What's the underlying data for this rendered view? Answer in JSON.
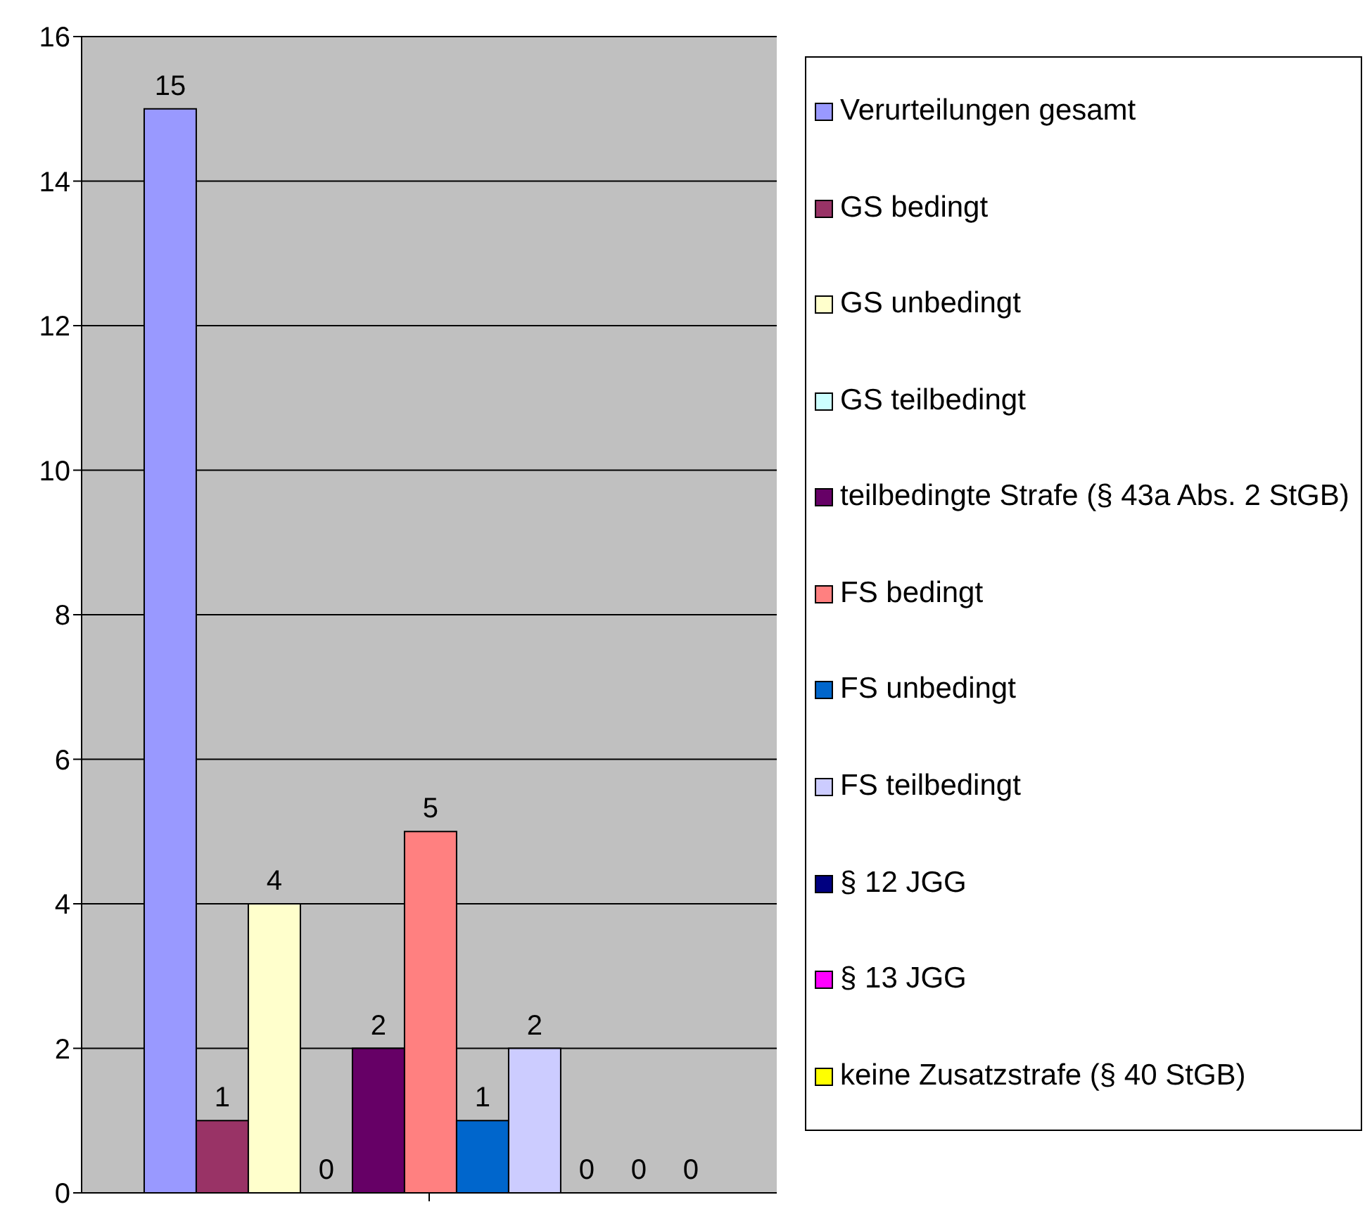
{
  "chart_data": {
    "type": "bar",
    "categories": [
      null
    ],
    "series": [
      {
        "name": "Verurteilungen gesamt",
        "color": "#9999ff",
        "values": [
          15
        ]
      },
      {
        "name": "GS bedingt",
        "color": "#993366",
        "values": [
          1
        ]
      },
      {
        "name": "GS unbedingt",
        "color": "#ffffcc",
        "values": [
          4
        ]
      },
      {
        "name": "GS teilbedingt",
        "color": "#ccffff",
        "values": [
          0
        ]
      },
      {
        "name": "teilbedingte Strafe (§ 43a Abs. 2 StGB)",
        "color": "#660066",
        "values": [
          2
        ]
      },
      {
        "name": "FS bedingt",
        "color": "#ff8080",
        "values": [
          5
        ]
      },
      {
        "name": "FS unbedingt",
        "color": "#0066cc",
        "values": [
          1
        ]
      },
      {
        "name": "FS teilbedingt",
        "color": "#ccccff",
        "values": [
          2
        ]
      },
      {
        "name": "§ 12 JGG",
        "color": "#000080",
        "values": [
          0
        ]
      },
      {
        "name": "§ 13 JGG",
        "color": "#ff00ff",
        "values": [
          0
        ]
      },
      {
        "name": "keine Zusatzstrafe (§ 40 StGB)",
        "color": "#ffff00",
        "values": [
          0
        ]
      }
    ],
    "ylim": [
      0,
      16
    ],
    "yticks": [
      0,
      2,
      4,
      6,
      8,
      10,
      12,
      14,
      16
    ],
    "grid": "y",
    "legend": "right",
    "data_labels": true
  }
}
